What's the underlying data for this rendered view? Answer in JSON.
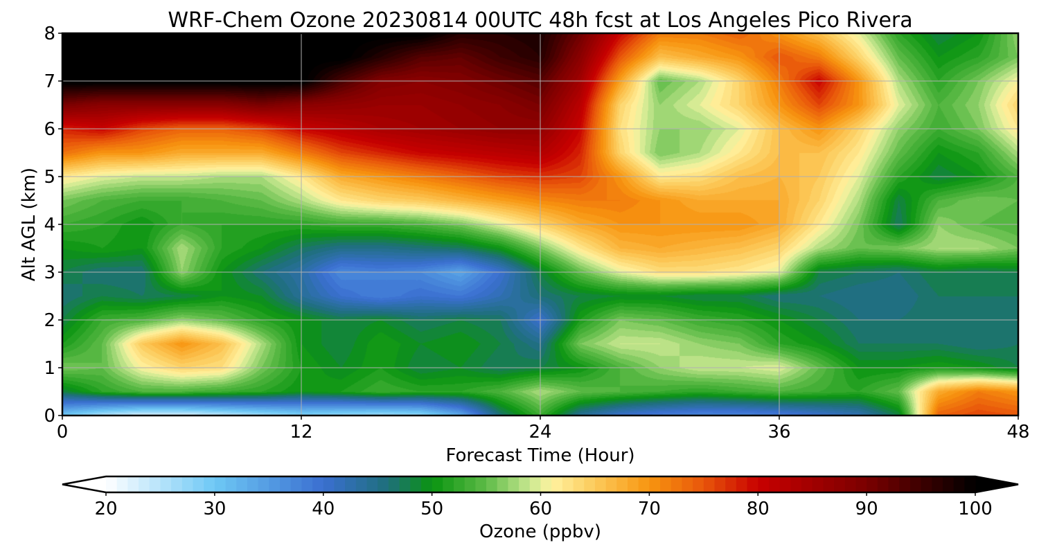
{
  "chart_data": {
    "type": "heatmap",
    "title": "WRF-Chem Ozone  20230814 00UTC 48h fcst at Los Angeles Pico Rivera",
    "xlabel": "Forecast Time (Hour)",
    "ylabel": "Alt AGL (km)",
    "xlim": [
      0,
      48
    ],
    "ylim": [
      0,
      8
    ],
    "xticks": [
      0,
      12,
      24,
      36,
      48
    ],
    "yticks": [
      0,
      1,
      2,
      3,
      4,
      5,
      6,
      7,
      8
    ],
    "grid": true,
    "colorbar": {
      "label": "Ozone  (ppbv)",
      "min": 20,
      "max": 100,
      "ticks": [
        20,
        30,
        40,
        50,
        60,
        70,
        80,
        90,
        100
      ],
      "extend": "both",
      "levels_step": 1,
      "colormap": [
        [
          20,
          "#ffffff"
        ],
        [
          30,
          "#6ec8f5"
        ],
        [
          40,
          "#3a6fd0"
        ],
        [
          46,
          "#1e6f7a"
        ],
        [
          50,
          "#0a9410"
        ],
        [
          55,
          "#5ebb48"
        ],
        [
          59,
          "#c8e890"
        ],
        [
          61,
          "#fff2a0"
        ],
        [
          65,
          "#fcca5a"
        ],
        [
          70,
          "#f79510"
        ],
        [
          75,
          "#e8560a"
        ],
        [
          80,
          "#c80000"
        ],
        [
          90,
          "#7a0000"
        ],
        [
          100,
          "#000000"
        ]
      ]
    },
    "x_hours": [
      0,
      2,
      4,
      6,
      8,
      10,
      12,
      14,
      16,
      18,
      20,
      22,
      24,
      26,
      28,
      30,
      32,
      34,
      36,
      38,
      40,
      42,
      44,
      46,
      48
    ],
    "y_km": [
      0,
      0.5,
      1,
      1.5,
      2,
      2.5,
      3,
      3.5,
      4,
      4.5,
      5,
      5.5,
      6,
      6.5,
      7,
      7.5,
      8
    ],
    "ozone_ppbv": [
      [
        30,
        25,
        22,
        22,
        24,
        26,
        28,
        27,
        26,
        27,
        33,
        46,
        53,
        44,
        40,
        38,
        37,
        37,
        38,
        40,
        42,
        48,
        74,
        76,
        75
      ],
      [
        48,
        52,
        54,
        54,
        53,
        52,
        50,
        51,
        53,
        52,
        52,
        54,
        58,
        55,
        54,
        53,
        52,
        53,
        54,
        53,
        52,
        55,
        68,
        72,
        70
      ],
      [
        56,
        55,
        61,
        64,
        63,
        56,
        51,
        49,
        51,
        48,
        49,
        47,
        48,
        50,
        54,
        57,
        59,
        59,
        60,
        55,
        50,
        50,
        51,
        50,
        48
      ],
      [
        51,
        55,
        65,
        70,
        66,
        58,
        50,
        48,
        51,
        49,
        50,
        48,
        45,
        56,
        59,
        59,
        57,
        56,
        52,
        50,
        47,
        47,
        47,
        46,
        47
      ],
      [
        48,
        53,
        54,
        57,
        55,
        52,
        50,
        48,
        49,
        47,
        48,
        47,
        40,
        51,
        56,
        55,
        53,
        52,
        50,
        48,
        46,
        46,
        47,
        46,
        47
      ],
      [
        46,
        48,
        47,
        48,
        50,
        49,
        44,
        40,
        38,
        40,
        39,
        42,
        46,
        48,
        49,
        49,
        48,
        48,
        46,
        46,
        45,
        45,
        47,
        47,
        47
      ],
      [
        48,
        46,
        46,
        57,
        50,
        46,
        43,
        37,
        38,
        37,
        34,
        40,
        48,
        55,
        60,
        63,
        63,
        62,
        60,
        48,
        47,
        46,
        48,
        47,
        48
      ],
      [
        50,
        51,
        50,
        58,
        52,
        50,
        47,
        45,
        45,
        46,
        47,
        50,
        56,
        62,
        67,
        68,
        67,
        66,
        64,
        58,
        55,
        56,
        58,
        58,
        56
      ],
      [
        53,
        52,
        50,
        53,
        52,
        52,
        52,
        53,
        53,
        54,
        56,
        60,
        64,
        68,
        70,
        70,
        70,
        70,
        68,
        62,
        56,
        47,
        57,
        55,
        54
      ],
      [
        56,
        54,
        53,
        53,
        54,
        55,
        58,
        62,
        64,
        65,
        67,
        69,
        71,
        72,
        72,
        70,
        68,
        68,
        68,
        64,
        58,
        48,
        54,
        56,
        55
      ],
      [
        62,
        60,
        59,
        59,
        58,
        58,
        62,
        68,
        70,
        72,
        74,
        76,
        77,
        76,
        70,
        62,
        63,
        66,
        67,
        65,
        60,
        52,
        48,
        50,
        54
      ],
      [
        73,
        70,
        70,
        68,
        68,
        68,
        72,
        76,
        78,
        80,
        81,
        82,
        83,
        78,
        64,
        56,
        58,
        62,
        66,
        66,
        62,
        55,
        50,
        52,
        58
      ],
      [
        78,
        80,
        76,
        74,
        74,
        76,
        80,
        82,
        84,
        85,
        86,
        87,
        87,
        80,
        63,
        57,
        57,
        60,
        66,
        70,
        64,
        57,
        53,
        56,
        62
      ],
      [
        90,
        88,
        88,
        88,
        88,
        90,
        88,
        87,
        86,
        86,
        87,
        88,
        90,
        82,
        64,
        57,
        60,
        64,
        70,
        76,
        70,
        60,
        54,
        57,
        64
      ],
      [
        101,
        101,
        101,
        101,
        101,
        101,
        101,
        94,
        89,
        88,
        89,
        91,
        93,
        85,
        69,
        55,
        58,
        64,
        72,
        80,
        70,
        58,
        52,
        56,
        61
      ],
      [
        101,
        101,
        101,
        101,
        101,
        101,
        101,
        101,
        97,
        93,
        92,
        95,
        97,
        88,
        75,
        66,
        68,
        70,
        75,
        72,
        64,
        55,
        50,
        52,
        56
      ],
      [
        101,
        101,
        101,
        101,
        101,
        101,
        101,
        101,
        101,
        101,
        97,
        97,
        98,
        91,
        80,
        72,
        72,
        74,
        70,
        66,
        60,
        52,
        48,
        50,
        57
      ]
    ]
  }
}
